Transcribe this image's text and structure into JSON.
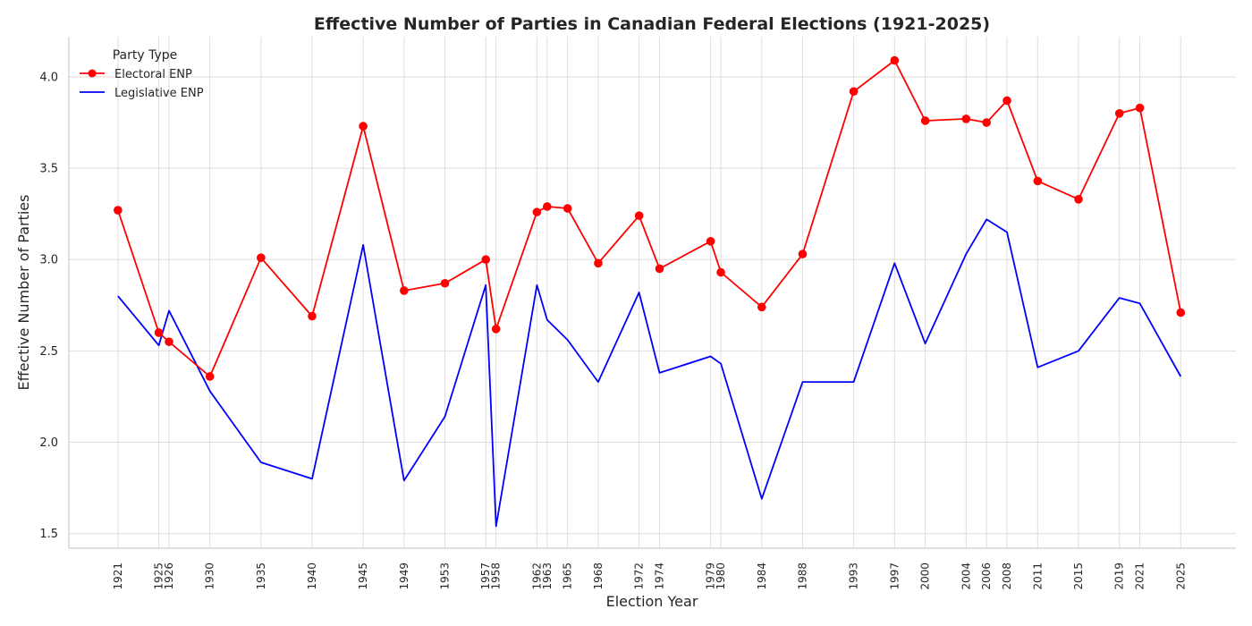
{
  "chart_data": {
    "type": "line",
    "title": "Effective Number of Parties in Canadian Federal Elections (1921-2025)",
    "xlabel": "Election Year",
    "ylabel": "Effective Number of Parties",
    "ylim": [
      1.42,
      4.22
    ],
    "yticks": [
      1.5,
      2.0,
      2.5,
      3.0,
      3.5,
      4.0
    ],
    "ytick_labels": [
      "1.5",
      "2.0",
      "2.5",
      "3.0",
      "3.5",
      "4.0"
    ],
    "xlim": [
      1916.2,
      2030.4
    ],
    "grid": true,
    "legend": {
      "title": "Party Type",
      "position": "top-left"
    },
    "x": [
      1921,
      1925,
      1926,
      1930,
      1935,
      1940,
      1945,
      1949,
      1953,
      1957,
      1958,
      1962,
      1963,
      1965,
      1968,
      1972,
      1974,
      1979,
      1980,
      1984,
      1988,
      1993,
      1997,
      2000,
      2004,
      2006,
      2008,
      2011,
      2015,
      2019,
      2021,
      2025
    ],
    "x_labels": [
      "1921",
      "1925",
      "1926",
      "1930",
      "1935",
      "1940",
      "1945",
      "1949",
      "1953",
      "1957",
      "1958",
      "1962",
      "1963",
      "1965",
      "1968",
      "1972",
      "1974",
      "1979",
      "1980",
      "1984",
      "1988",
      "1993",
      "1997",
      "2000",
      "2004",
      "2006",
      "2008",
      "2011",
      "2015",
      "2019",
      "2021",
      "2025"
    ],
    "series": [
      {
        "name": "Electoral ENP",
        "color": "#ff0000",
        "markers": true,
        "values": [
          3.27,
          2.6,
          2.55,
          2.36,
          3.01,
          2.69,
          3.73,
          2.83,
          2.87,
          3.0,
          2.62,
          3.26,
          3.29,
          3.28,
          2.98,
          3.24,
          2.95,
          3.1,
          2.93,
          2.74,
          3.03,
          3.92,
          4.09,
          3.76,
          3.77,
          3.75,
          3.87,
          3.43,
          3.33,
          3.8,
          3.83,
          2.71
        ]
      },
      {
        "name": "Legislative ENP",
        "color": "#0000ff",
        "markers": false,
        "values": [
          2.8,
          2.53,
          2.72,
          2.28,
          1.89,
          1.8,
          3.08,
          1.79,
          2.14,
          2.86,
          1.54,
          2.86,
          2.67,
          2.56,
          2.33,
          2.82,
          2.38,
          2.47,
          2.43,
          1.69,
          2.33,
          2.33,
          2.98,
          2.54,
          3.03,
          3.22,
          3.15,
          2.41,
          2.5,
          2.79,
          2.76,
          2.36
        ]
      }
    ]
  }
}
